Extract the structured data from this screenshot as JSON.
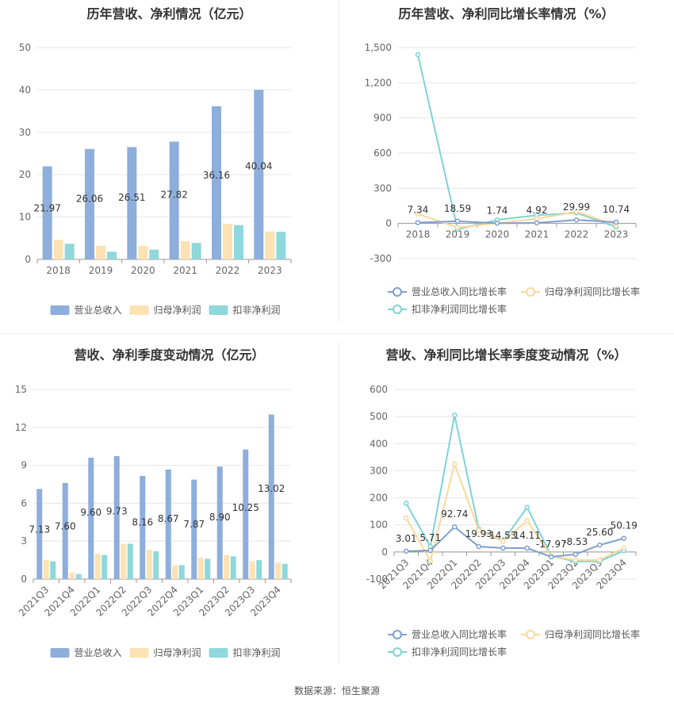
{
  "source": "数据来源：恒生聚源",
  "chart_data": [
    {
      "id": "annual_bar",
      "type": "bar",
      "title": "历年营收、净利情况（亿元）",
      "categories": [
        "2018",
        "2019",
        "2020",
        "2021",
        "2022",
        "2023"
      ],
      "ylim": [
        0,
        50
      ],
      "yticks": [
        0,
        10,
        20,
        30,
        40,
        50
      ],
      "tick_labels": [
        "0",
        "10",
        "20",
        "30",
        "40",
        "50"
      ],
      "series": [
        {
          "name": "营业总收入",
          "color": "#8eaedc",
          "values": [
            21.97,
            26.06,
            26.51,
            27.82,
            36.16,
            40.04
          ]
        },
        {
          "name": "归母净利润",
          "color": "#fde2b3",
          "values": [
            4.6,
            3.2,
            3.2,
            4.3,
            8.4,
            6.6
          ]
        },
        {
          "name": "扣非净利润",
          "color": "#8fd8dc",
          "values": [
            3.7,
            1.8,
            2.3,
            3.9,
            8.1,
            6.5
          ]
        }
      ],
      "value_labels": [
        "21.97",
        "26.06",
        "26.51",
        "27.82",
        "36.16",
        "40.04"
      ],
      "legend_position": "bottom"
    },
    {
      "id": "annual_growth",
      "type": "line",
      "title": "历年营收、净利同比增长率情况（%）",
      "categories": [
        "2018",
        "2019",
        "2020",
        "2021",
        "2022",
        "2023"
      ],
      "ylim": [
        -300,
        1500
      ],
      "yticks": [
        -300,
        0,
        300,
        600,
        900,
        1200,
        1500
      ],
      "tick_labels": [
        "-300",
        "0",
        "300",
        "600",
        "900",
        "1,200",
        "1,500"
      ],
      "series": [
        {
          "name": "营业总收入同比增长率",
          "color": "#7f9fcf",
          "values": [
            7.34,
            18.59,
            1.74,
            4.92,
            29.99,
            10.74
          ]
        },
        {
          "name": "归母净利润同比增长率",
          "color": "#fcd89a",
          "values": [
            80,
            -35,
            2,
            40,
            100,
            -15
          ]
        },
        {
          "name": "扣非净利润同比增长率",
          "color": "#7fd3d8",
          "values": [
            1440,
            -50,
            30,
            70,
            90,
            -30
          ]
        }
      ],
      "value_labels": [
        "7.34",
        "18.59",
        "1.74",
        "4.92",
        "29.99",
        "10.74"
      ],
      "legend_position": "bottom"
    },
    {
      "id": "quarter_bar",
      "type": "bar",
      "title": "营收、净利季度变动情况（亿元）",
      "categories": [
        "2021Q3",
        "2021Q4",
        "2022Q1",
        "2022Q2",
        "2022Q3",
        "2022Q4",
        "2023Q1",
        "2023Q2",
        "2023Q3",
        "2023Q4"
      ],
      "ylim": [
        0,
        15
      ],
      "yticks": [
        0,
        3,
        6,
        9,
        12,
        15
      ],
      "tick_labels": [
        "0",
        "3",
        "6",
        "9",
        "12",
        "15"
      ],
      "series": [
        {
          "name": "营业总收入",
          "color": "#8eaedc",
          "values": [
            7.13,
            7.6,
            9.6,
            9.73,
            8.16,
            8.67,
            7.87,
            8.9,
            10.25,
            13.02
          ]
        },
        {
          "name": "归母净利润",
          "color": "#fde2b3",
          "values": [
            1.5,
            0.5,
            2.0,
            2.8,
            2.3,
            1.1,
            1.7,
            1.9,
            1.4,
            1.3
          ]
        },
        {
          "name": "扣非净利润",
          "color": "#8fd8dc",
          "values": [
            1.4,
            0.4,
            1.9,
            2.8,
            2.2,
            1.1,
            1.6,
            1.8,
            1.5,
            1.2
          ]
        }
      ],
      "value_labels": [
        "7.13",
        "7.60",
        "9.60",
        "9.73",
        "8.16",
        "8.67",
        "7.87",
        "8.90",
        "10.25",
        "13.02"
      ],
      "legend_position": "bottom"
    },
    {
      "id": "quarter_growth",
      "type": "line",
      "title": "营收、净利同比增长率季度变动情况（%）",
      "categories": [
        "2021Q3",
        "2021Q4",
        "2022Q1",
        "2022Q2",
        "2022Q3",
        "2022Q4",
        "2023Q1",
        "2023Q2",
        "2023Q3",
        "2023Q4"
      ],
      "ylim": [
        -100,
        600
      ],
      "yticks": [
        -100,
        0,
        100,
        200,
        300,
        400,
        500,
        600
      ],
      "tick_labels": [
        "-100",
        "0",
        "100",
        "200",
        "300",
        "400",
        "500",
        "600"
      ],
      "series": [
        {
          "name": "营业总收入同比增长率",
          "color": "#7f9fcf",
          "values": [
            3.01,
            5.71,
            92.74,
            19.93,
            14.53,
            14.11,
            -17.97,
            -8.53,
            25.6,
            50.19
          ]
        },
        {
          "name": "归母净利润同比增长率",
          "color": "#fcd89a",
          "values": [
            125,
            -33,
            325,
            80,
            40,
            115,
            -15,
            -30,
            -30,
            15
          ]
        },
        {
          "name": "扣非净利润同比增长率",
          "color": "#7fd3d8",
          "values": [
            180,
            20,
            505,
            85,
            40,
            165,
            -15,
            -35,
            -35,
            5
          ]
        }
      ],
      "value_labels": [
        "3.01",
        "5.71",
        "92.74",
        "19.93",
        "14.53",
        "14.11",
        "-17.97",
        "-8.53",
        "25.60",
        "50.19"
      ],
      "legend_position": "bottom"
    }
  ]
}
